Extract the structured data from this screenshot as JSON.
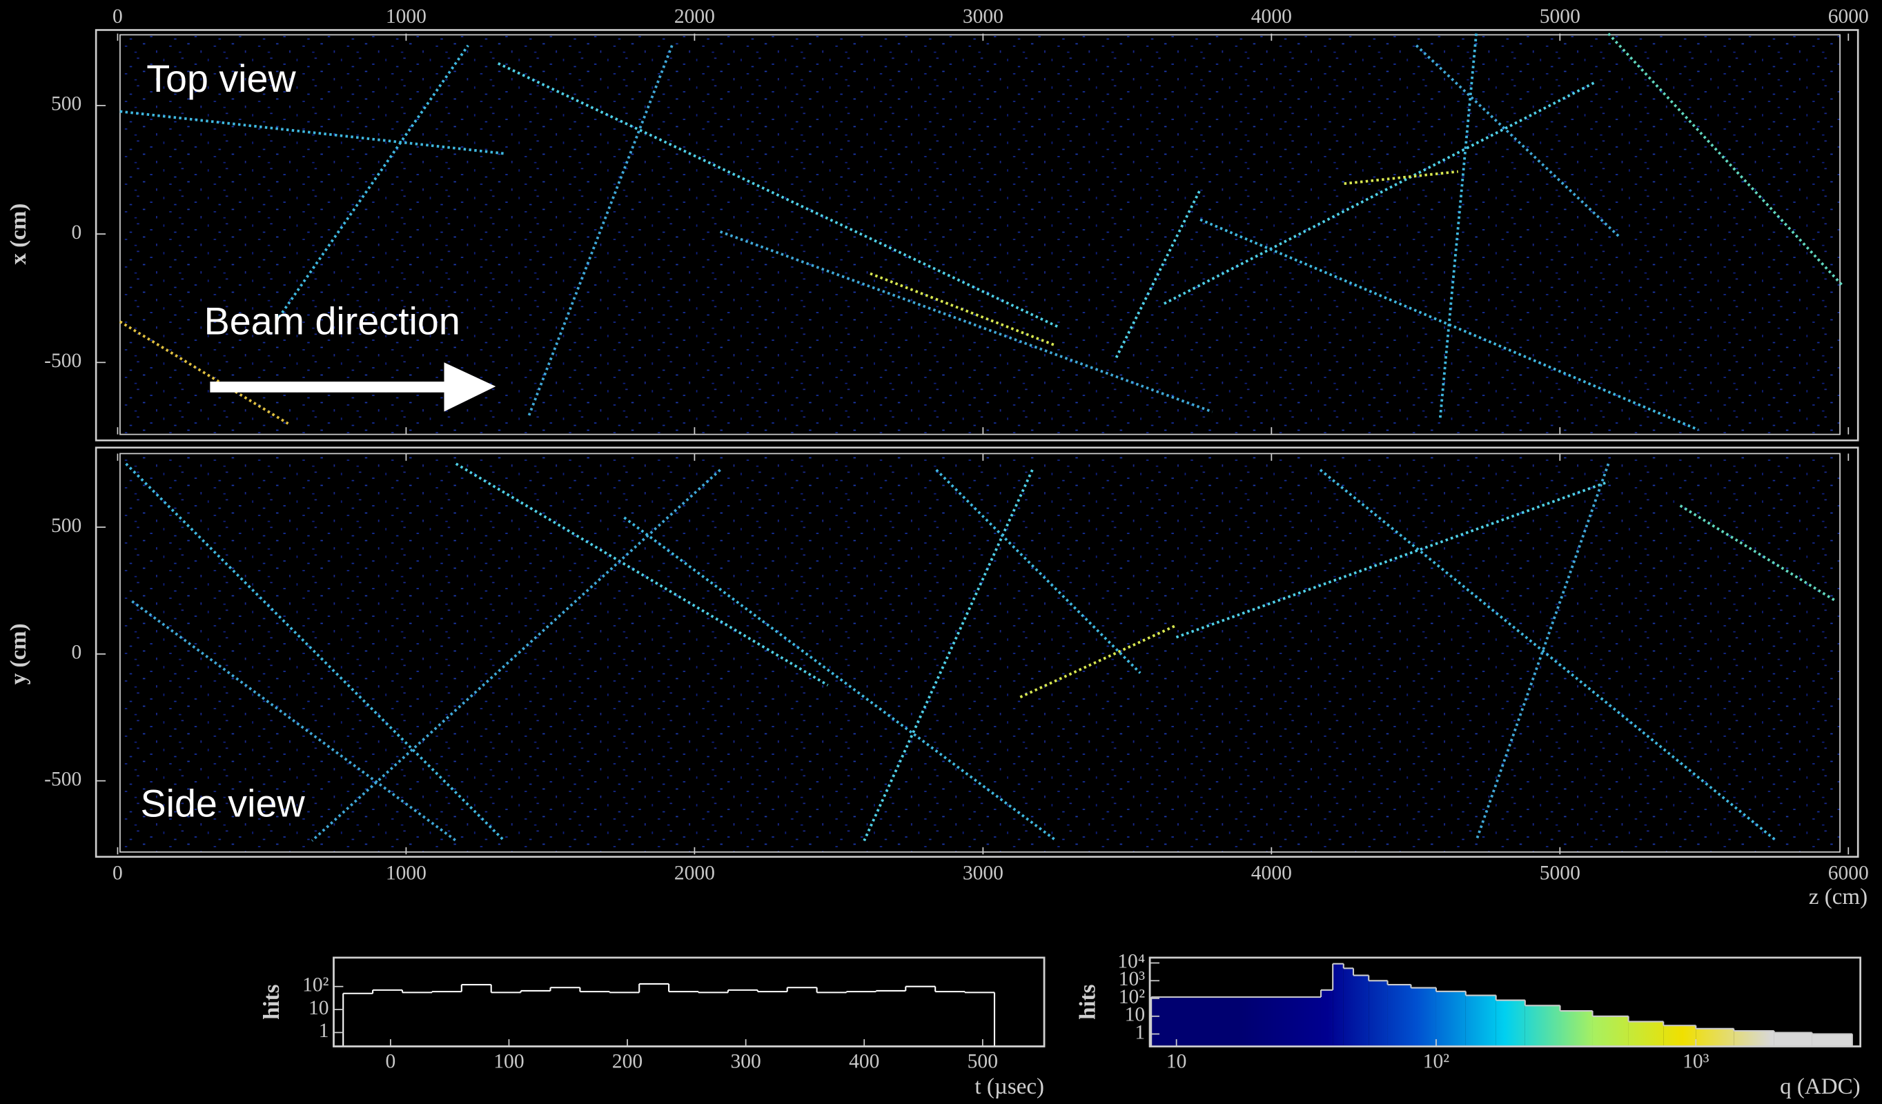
{
  "chart_data": [
    {
      "type": "track",
      "title": "Top view",
      "annotation": "Beam direction",
      "ylabel": "x (cm)",
      "xlim": [
        0,
        6000
      ],
      "xticks": [
        0,
        1000,
        2000,
        3000,
        4000,
        5000,
        6000
      ],
      "ylim": [
        -780,
        780
      ],
      "yticks": [
        -500,
        0,
        500
      ],
      "tracks": [
        {
          "z": [
            8,
            1341
          ],
          "v": [
            477,
            313
          ],
          "color": "#3fb8e0"
        },
        {
          "z": [
            1319,
            3265
          ],
          "v": [
            664,
            -364
          ],
          "color": "#4fd0e8"
        },
        {
          "z": [
            549,
            1215
          ],
          "v": [
            -341,
            734
          ],
          "color": "#3fb8e0"
        },
        {
          "z": [
            2089,
            3795
          ],
          "v": [
            9,
            -692
          ],
          "color": "#3fa8d8"
        },
        {
          "z": [
            3628,
            5126
          ],
          "v": [
            -271,
            593
          ],
          "color": "#4fd0e8"
        },
        {
          "z": [
            3753,
            5480
          ],
          "v": [
            56,
            -762
          ],
          "color": "#3fb8e0"
        },
        {
          "z": [
            5168,
            5980
          ],
          "v": [
            780,
            -201
          ],
          "color": "#60d8c0"
        },
        {
          "z": [
            4502,
            5209
          ],
          "v": [
            734,
            -14
          ],
          "color": "#3fa8d8"
        },
        {
          "z": [
            3462,
            3753
          ],
          "v": [
            -481,
            173
          ],
          "color": "#4fd0e8"
        },
        {
          "z": [
            2609,
            3254
          ],
          "v": [
            -154,
            -435
          ],
          "color": "#d8e850"
        },
        {
          "z": [
            1922,
            1423
          ],
          "v": [
            734,
            -715
          ],
          "color": "#3fa8d8"
        },
        {
          "z": [
            4710,
            4585
          ],
          "v": [
            780,
            -715
          ],
          "color": "#3fb8e0"
        },
        {
          "z": [
            4252,
            4647
          ],
          "v": [
            196,
            243
          ],
          "color": "#d8e850"
        },
        {
          "z": [
            8,
            591
          ],
          "v": [
            -341,
            -738
          ],
          "color": "#e0c040"
        }
      ]
    },
    {
      "type": "track",
      "title": "Side view",
      "ylabel": "y (cm)",
      "xlabel": "z (cm)",
      "xlim": [
        0,
        6000
      ],
      "xticks": [
        0,
        1000,
        2000,
        3000,
        4000,
        5000,
        6000
      ],
      "ylim": [
        -790,
        790
      ],
      "yticks": [
        -500,
        0,
        500
      ],
      "tracks": [
        {
          "z": [
            29,
            1340
          ],
          "v": [
            750,
            -736
          ],
          "color": "#3fb8e0"
        },
        {
          "z": [
            1173,
            2462
          ],
          "v": [
            750,
            -123
          ],
          "color": "#4fd0e8"
        },
        {
          "z": [
            2089,
            674
          ],
          "v": [
            726,
            -736
          ],
          "color": "#3fa8d8"
        },
        {
          "z": [
            3670,
            5168
          ],
          "v": [
            66,
            679
          ],
          "color": "#4fd0e8"
        },
        {
          "z": [
            3129,
            3670
          ],
          "v": [
            -170,
            113
          ],
          "color": "#d8e850"
        },
        {
          "z": [
            4169,
            5750
          ],
          "v": [
            726,
            -736
          ],
          "color": "#3fb8e0"
        },
        {
          "z": [
            5168,
            4710
          ],
          "v": [
            750,
            -736
          ],
          "color": "#3fa8d8"
        },
        {
          "z": [
            1756,
            3254
          ],
          "v": [
            538,
            -736
          ],
          "color": "#3fb8e0"
        },
        {
          "z": [
            50,
            1173
          ],
          "v": [
            208,
            -736
          ],
          "color": "#3fa8d8"
        },
        {
          "z": [
            3171,
            2588
          ],
          "v": [
            726,
            -736
          ],
          "color": "#4fd0e8"
        },
        {
          "z": [
            5417,
            5958
          ],
          "v": [
            585,
            208
          ],
          "color": "#60d8c0"
        },
        {
          "z": [
            2838,
            3545
          ],
          "v": [
            726,
            -75
          ],
          "color": "#3fb8e0"
        }
      ]
    },
    {
      "type": "histogram",
      "xlabel": "t (µsec)",
      "ylabel": "hits",
      "color": "#ffffff",
      "log_y": true,
      "xlim": [
        -48,
        552
      ],
      "xticks": [
        0,
        100,
        200,
        300,
        400,
        500
      ],
      "ylim": [
        0.25,
        1800
      ],
      "yticks": [
        1,
        10,
        {
          "value": 100,
          "label": "10²"
        }
      ],
      "bins": [
        -40,
        -15,
        10,
        35,
        60,
        85,
        110,
        135,
        160,
        185,
        210,
        235,
        260,
        285,
        310,
        335,
        360,
        385,
        410,
        435,
        460,
        485,
        510
      ],
      "values": [
        50,
        70,
        55,
        60,
        120,
        55,
        65,
        90,
        60,
        55,
        130,
        60,
        55,
        70,
        60,
        90,
        55,
        60,
        65,
        100,
        60,
        55
      ]
    },
    {
      "type": "histogram",
      "xlabel": "q (ADC)",
      "ylabel": "hits",
      "color": "#cccccc",
      "log_x": true,
      "log_y": true,
      "colormap": [
        "#000070",
        "#000070",
        "#000090",
        "#0050d0",
        "#00d0f0",
        "#a8f060",
        "#f0e000",
        "#d8d8d8",
        "#d8d8d8"
      ],
      "xlim": [
        7.9,
        4300
      ],
      "xticks": [
        10,
        {
          "value": 100,
          "label": "10²"
        },
        {
          "value": 1000,
          "label": "10³"
        }
      ],
      "ylim": [
        0.2,
        20000
      ],
      "yticks": [
        1,
        10,
        {
          "value": 100,
          "label": "10²"
        },
        {
          "value": 1000,
          "label": "10³"
        },
        {
          "value": 10000,
          "label": "10⁴"
        }
      ],
      "bins": [
        8,
        36,
        40,
        44,
        48,
        55,
        65,
        80,
        100,
        130,
        170,
        220,
        300,
        400,
        550,
        750,
        1000,
        1400,
        2000,
        2800,
        4000
      ],
      "values": [
        120,
        300,
        9000,
        5000,
        2000,
        1000,
        600,
        400,
        250,
        150,
        80,
        40,
        20,
        10,
        5,
        3,
        2,
        1.5,
        1.2,
        1
      ]
    }
  ]
}
